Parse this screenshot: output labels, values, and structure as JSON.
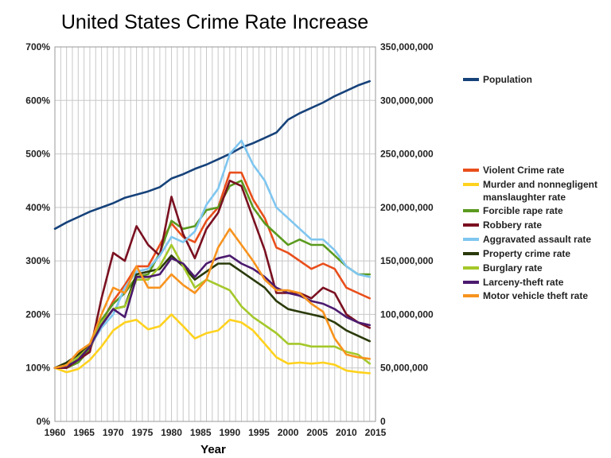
{
  "chart_data": {
    "type": "line",
    "title": "United States Crime Rate Increase",
    "xlabel": "Year",
    "ylabel_left": "",
    "ylabel_right": "",
    "x_ticks": [
      "1960",
      "1965",
      "1970",
      "1975",
      "1980",
      "1985",
      "1990",
      "1995",
      "2000",
      "2005",
      "2010",
      "2015"
    ],
    "y_left_ticks": [
      "0%",
      "100%",
      "200%",
      "300%",
      "400%",
      "500%",
      "600%",
      "700%"
    ],
    "y_right_ticks": [
      "0",
      "50,000,000",
      "100,000,000",
      "150,000,000",
      "200,000,000",
      "250,000,000",
      "300,000,000",
      "350,000,000"
    ],
    "xlim": [
      1960,
      2015
    ],
    "ylim_left": [
      0,
      700
    ],
    "ylim_right": [
      0,
      350000000
    ],
    "grid": true,
    "legend_position": "right",
    "x_years": [
      1960,
      1962,
      1964,
      1966,
      1968,
      1970,
      1972,
      1974,
      1976,
      1978,
      1980,
      1982,
      1984,
      1986,
      1988,
      1990,
      1992,
      1994,
      1996,
      1998,
      2000,
      2002,
      2004,
      2006,
      2008,
      2010,
      2012,
      2014
    ],
    "series": [
      {
        "name": "Population",
        "axis": "right",
        "color": "#16427a",
        "values": [
          180000000,
          186000000,
          191000000,
          196000000,
          200000000,
          204000000,
          209000000,
          212000000,
          215000000,
          219000000,
          227000000,
          231000000,
          236000000,
          240000000,
          245000000,
          250000000,
          256000000,
          260000000,
          265000000,
          270000000,
          282000000,
          288000000,
          293000000,
          298000000,
          304000000,
          309000000,
          314000000,
          318000000
        ]
      },
      {
        "name": "Violent Crime rate",
        "axis": "left",
        "color": "#e94e1b",
        "values": [
          100,
          102,
          118,
          135,
          185,
          225,
          255,
          290,
          290,
          330,
          370,
          345,
          335,
          375,
          400,
          465,
          465,
          415,
          380,
          325,
          315,
          300,
          285,
          295,
          285,
          250,
          240,
          230
        ]
      },
      {
        "name": "Murder and nonnegligent manslaughter rate",
        "axis": "left",
        "color": "#ffd21e",
        "values": [
          100,
          92,
          98,
          115,
          140,
          170,
          185,
          190,
          172,
          178,
          200,
          178,
          155,
          165,
          170,
          190,
          185,
          170,
          145,
          120,
          108,
          110,
          108,
          110,
          106,
          95,
          92,
          90
        ]
      },
      {
        "name": "Forcible rape rate",
        "axis": "left",
        "color": "#5b9a1f",
        "values": [
          100,
          100,
          110,
          135,
          190,
          220,
          240,
          270,
          275,
          315,
          375,
          360,
          365,
          395,
          400,
          440,
          450,
          400,
          370,
          350,
          330,
          340,
          330,
          330,
          310,
          290,
          275,
          275
        ]
      },
      {
        "name": "Robbery rate",
        "axis": "left",
        "color": "#7a1020",
        "values": [
          100,
          100,
          115,
          130,
          230,
          315,
          300,
          365,
          330,
          310,
          420,
          350,
          305,
          360,
          390,
          450,
          440,
          380,
          320,
          240,
          240,
          240,
          230,
          250,
          240,
          200,
          185,
          175
        ]
      },
      {
        "name": "Aggravated assault rate",
        "axis": "left",
        "color": "#7fc6f0",
        "values": [
          100,
          105,
          125,
          140,
          175,
          200,
          250,
          280,
          285,
          310,
          345,
          335,
          355,
          405,
          435,
          500,
          525,
          480,
          450,
          400,
          380,
          360,
          340,
          340,
          320,
          290,
          275,
          270
        ]
      },
      {
        "name": "Property crime rate",
        "axis": "left",
        "color": "#2a3a0a",
        "values": [
          100,
          110,
          125,
          145,
          180,
          210,
          215,
          275,
          280,
          285,
          310,
          290,
          265,
          280,
          295,
          295,
          280,
          265,
          250,
          225,
          210,
          205,
          200,
          195,
          185,
          170,
          160,
          150
        ]
      },
      {
        "name": "Burglary rate",
        "axis": "left",
        "color": "#a4c82a",
        "values": [
          100,
          105,
          120,
          140,
          185,
          210,
          215,
          265,
          265,
          290,
          330,
          290,
          250,
          265,
          255,
          245,
          215,
          195,
          180,
          165,
          145,
          145,
          140,
          140,
          140,
          130,
          125,
          108
        ]
      },
      {
        "name": "Larceny-theft rate",
        "axis": "left",
        "color": "#4b1a6e",
        "values": [
          100,
          103,
          115,
          140,
          180,
          210,
          195,
          270,
          270,
          275,
          305,
          295,
          270,
          295,
          305,
          310,
          295,
          285,
          270,
          250,
          240,
          235,
          225,
          220,
          210,
          195,
          185,
          180
        ]
      },
      {
        "name": "Motor vehicle theft rate",
        "axis": "left",
        "color": "#f7931e",
        "values": [
          100,
          105,
          130,
          145,
          200,
          250,
          240,
          290,
          250,
          250,
          275,
          255,
          240,
          265,
          325,
          360,
          330,
          300,
          265,
          245,
          245,
          240,
          220,
          205,
          155,
          125,
          120,
          117
        ]
      }
    ]
  }
}
